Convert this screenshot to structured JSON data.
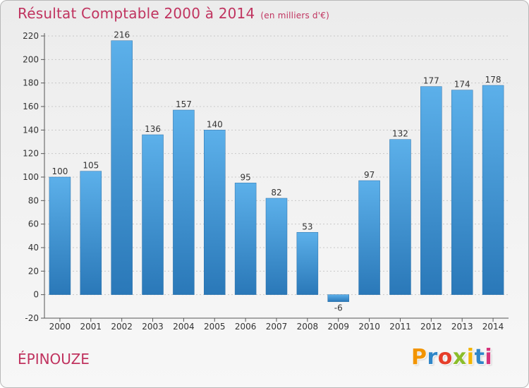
{
  "header": {
    "title": "Résultat Comptable 2000 à 2014",
    "unit": "(en milliers d'€)"
  },
  "footer": {
    "commune": "ÉPINOUZE",
    "logo_letters": [
      "P",
      "r",
      "o",
      "x",
      "i",
      "t",
      "i"
    ],
    "logo_colors": [
      "#f29400",
      "#2f86c8",
      "#e63e2a",
      "#8bbd2a",
      "#f2b400",
      "#2f86c8",
      "#d6337a"
    ]
  },
  "colors": {
    "bar": "#4da3e0",
    "bar_dark": "#2a78b8",
    "title": "#c0335f"
  },
  "chart_data": {
    "type": "bar",
    "title": "Résultat Comptable 2000 à 2014",
    "subtitle": "(en milliers d'€)",
    "xlabel": "",
    "ylabel": "",
    "categories": [
      "2000",
      "2001",
      "2002",
      "2003",
      "2004",
      "2005",
      "2006",
      "2007",
      "2008",
      "2009",
      "2010",
      "2011",
      "2012",
      "2013",
      "2014"
    ],
    "values": [
      100,
      105,
      216,
      136,
      157,
      140,
      95,
      82,
      53,
      -6,
      97,
      132,
      177,
      174,
      178
    ],
    "ylim": [
      -20,
      220
    ],
    "yticks": [
      -20,
      0,
      20,
      40,
      60,
      80,
      100,
      120,
      140,
      160,
      180,
      200,
      220
    ],
    "grid": "horizontal-dashed",
    "legend": "none"
  }
}
